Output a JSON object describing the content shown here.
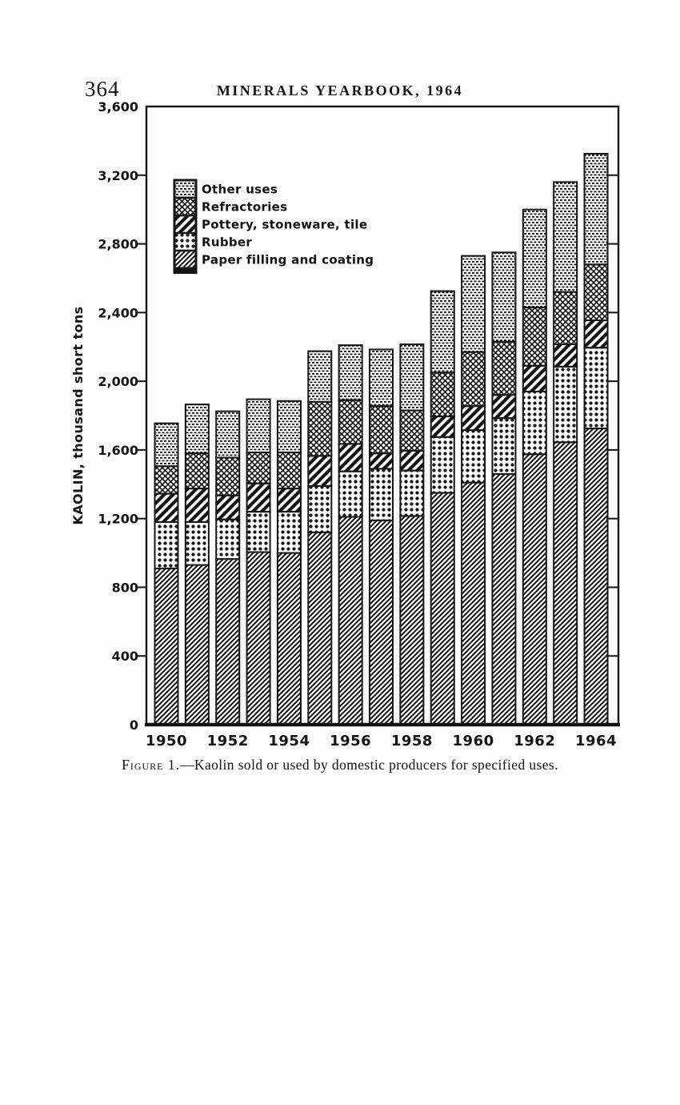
{
  "page": {
    "number": "364",
    "header": "MINERALS YEARBOOK, 1964",
    "figure_label": "Figure 1.",
    "figure_caption": "—Kaolin sold or used by domestic producers for specified uses."
  },
  "chart_data": {
    "type": "bar",
    "stacked": true,
    "title": "",
    "xlabel": "",
    "ylabel": "KAOLIN, thousand short tons",
    "ylim": [
      0,
      3600
    ],
    "ytick_interval": 400,
    "ytick_labels": [
      "0",
      "400",
      "800",
      "1,200",
      "1,600",
      "2,000",
      "2,400",
      "2,800",
      "3,200",
      "3,600"
    ],
    "grid": false,
    "legend_position": "inside top-left",
    "categories": [
      1950,
      1951,
      1952,
      1953,
      1954,
      1955,
      1956,
      1957,
      1958,
      1959,
      1960,
      1961,
      1962,
      1963,
      1964
    ],
    "xtick_labels": [
      "1950",
      "1952",
      "1954",
      "1956",
      "1958",
      "1960",
      "1962",
      "1964"
    ],
    "legend": [
      {
        "label": "Other uses",
        "pattern": "fine-stipple"
      },
      {
        "label": "Refractories",
        "pattern": "crosshatch"
      },
      {
        "label": "Pottery, stoneware, tile",
        "pattern": "wide-diagonal"
      },
      {
        "label": "Rubber",
        "pattern": "dots"
      },
      {
        "label": "Paper filling and coating",
        "pattern": "diagonal-hatch"
      }
    ],
    "series": [
      {
        "name": "Paper filling and coating",
        "pattern": "diagonal-hatch",
        "values": [
          910,
          930,
          965,
          1005,
          1000,
          1120,
          1210,
          1190,
          1215,
          1350,
          1410,
          1460,
          1575,
          1645,
          1725
        ]
      },
      {
        "name": "Rubber",
        "pattern": "dots",
        "values": [
          270,
          250,
          230,
          235,
          240,
          270,
          265,
          300,
          265,
          325,
          305,
          325,
          365,
          440,
          470
        ]
      },
      {
        "name": "Pottery, stoneware, tile",
        "pattern": "wide-diagonal",
        "values": [
          165,
          195,
          140,
          165,
          135,
          175,
          160,
          90,
          115,
          120,
          140,
          135,
          150,
          130,
          160
        ]
      },
      {
        "name": "Refractories",
        "pattern": "crosshatch",
        "values": [
          160,
          205,
          220,
          180,
          210,
          315,
          255,
          275,
          235,
          255,
          315,
          310,
          340,
          305,
          325
        ]
      },
      {
        "name": "Other uses",
        "pattern": "fine-stipple",
        "values": [
          250,
          285,
          270,
          310,
          300,
          295,
          320,
          330,
          385,
          475,
          560,
          520,
          570,
          640,
          645
        ]
      }
    ],
    "totals": [
      1755,
      1865,
      1825,
      1895,
      1885,
      2175,
      2210,
      2185,
      2215,
      2525,
      2730,
      2750,
      3000,
      3160,
      3325
    ]
  }
}
